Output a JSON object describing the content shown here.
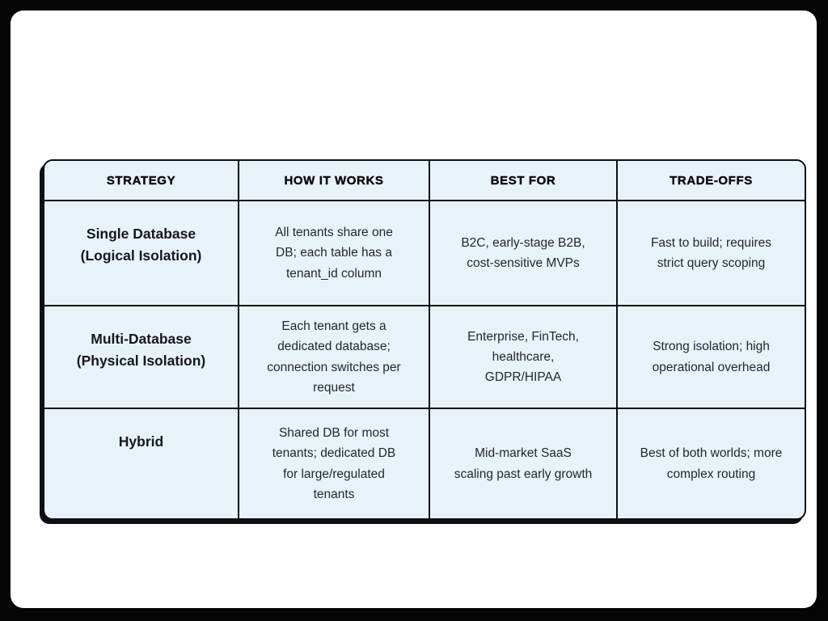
{
  "colors": {
    "frame_background": "#050505",
    "card_background": "#ffffff",
    "cell_fill": "#e7f3f9",
    "grid_line": "#0e0e12",
    "header_text": "#0b0b10",
    "body_text": "#26262c"
  },
  "table": {
    "headers": [
      "STRATEGY",
      "HOW IT WORKS",
      "BEST FOR",
      "TRADE-OFFS"
    ],
    "rows": [
      {
        "cells": [
          "Single Database (Logical Isolation)",
          "All tenants share one DB; each table has a tenant_id column",
          "B2C, early-stage B2B, cost-sensitive MVPs",
          "Fast to build; requires strict query scoping"
        ]
      },
      {
        "cells": [
          "Multi-Database (Physical Isolation)",
          "Each tenant gets a dedicated database; connection switches per request",
          "Enterprise, FinTech, healthcare, GDPR/HIPAA",
          "Strong isolation; high operational overhead"
        ]
      },
      {
        "cells": [
          "Hybrid",
          "Shared DB for most tenants; dedicated DB for large/regulated tenants",
          "Mid-market SaaS scaling past early growth",
          "Best of both worlds; more complex routing"
        ]
      }
    ]
  }
}
